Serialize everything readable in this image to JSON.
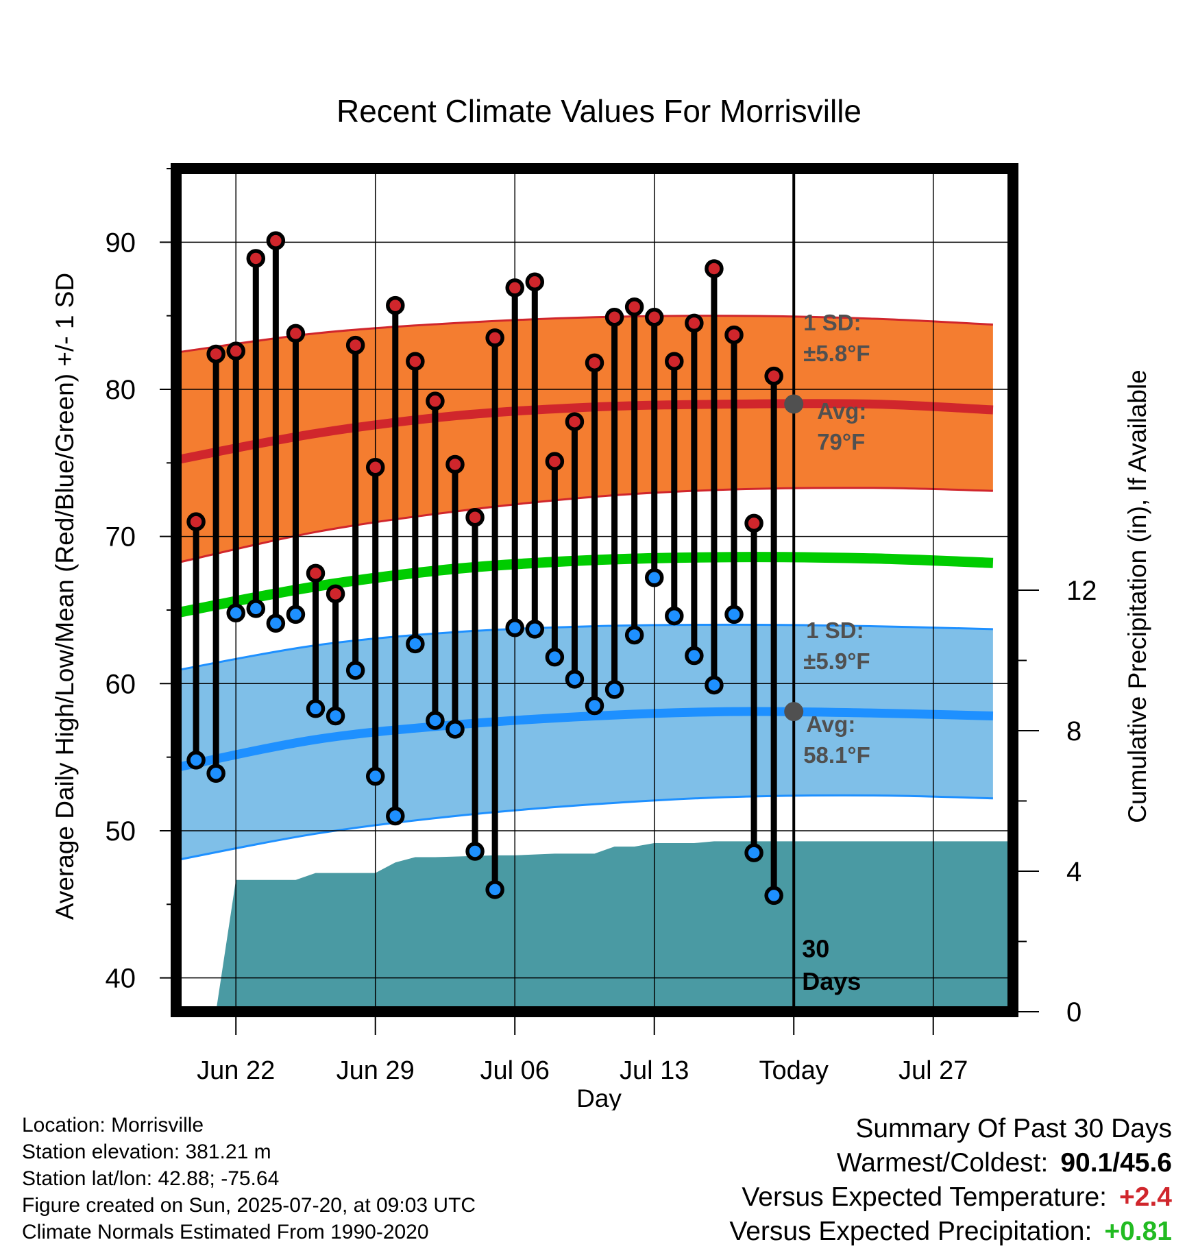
{
  "chart_data": {
    "type": "line",
    "title": "Recent Climate Values For Morrisville",
    "xlabel": "Day",
    "ylabel": "Average Daily High/Low/Mean (Red/Blue/Green) +/- 1 SD",
    "y2label": "Cumulative Precipitation (in), If Available",
    "ylim": [
      37.7,
      95
    ],
    "y2lim": [
      0,
      24
    ],
    "xlim": [
      "2025-06-19",
      "2025-07-31"
    ],
    "yticks": [
      40,
      50,
      60,
      70,
      80,
      90
    ],
    "y2ticks": [
      0,
      4,
      8,
      12
    ],
    "xticks": [
      {
        "date": "2025-06-22",
        "label": "Jun 22"
      },
      {
        "date": "2025-06-29",
        "label": "Jun 29"
      },
      {
        "date": "2025-07-06",
        "label": "Jul 06"
      },
      {
        "date": "2025-07-13",
        "label": "Jul 13"
      },
      {
        "date": "2025-07-20",
        "label": "Today"
      },
      {
        "date": "2025-07-27",
        "label": "Jul 27"
      }
    ],
    "grid": true,
    "today": "2025-07-20",
    "today_label": "30 Days",
    "normals": {
      "dates": [
        "2025-06-19",
        "2025-06-26",
        "2025-07-03",
        "2025-07-10",
        "2025-07-17",
        "2025-07-24",
        "2025-07-30"
      ],
      "high": [
        75.2,
        77.0,
        78.2,
        78.8,
        79.0,
        79.0,
        78.6
      ],
      "high_upper": [
        82.5,
        83.8,
        84.5,
        84.9,
        85.0,
        84.8,
        84.4
      ],
      "high_lower": [
        68.2,
        70.3,
        71.7,
        72.7,
        73.2,
        73.3,
        73.1
      ],
      "mean": [
        64.8,
        66.6,
        67.8,
        68.4,
        68.6,
        68.5,
        68.2
      ],
      "low": [
        54.3,
        56.2,
        57.2,
        57.8,
        58.1,
        58.0,
        57.8
      ],
      "low_upper": [
        60.9,
        62.6,
        63.5,
        63.9,
        64.0,
        63.9,
        63.7
      ],
      "low_lower": [
        48.0,
        49.8,
        51.0,
        51.8,
        52.3,
        52.4,
        52.2
      ]
    },
    "series": [
      {
        "name": "High",
        "dates": [
          "2025-06-20",
          "2025-06-21",
          "2025-06-22",
          "2025-06-23",
          "2025-06-24",
          "2025-06-25",
          "2025-06-26",
          "2025-06-27",
          "2025-06-28",
          "2025-06-29",
          "2025-06-30",
          "2025-07-01",
          "2025-07-02",
          "2025-07-03",
          "2025-07-04",
          "2025-07-05",
          "2025-07-06",
          "2025-07-07",
          "2025-07-08",
          "2025-07-09",
          "2025-07-10",
          "2025-07-11",
          "2025-07-12",
          "2025-07-13",
          "2025-07-14",
          "2025-07-15",
          "2025-07-16",
          "2025-07-17",
          "2025-07-18",
          "2025-07-19"
        ],
        "values": [
          71.0,
          82.4,
          82.6,
          88.9,
          90.1,
          83.8,
          67.5,
          66.1,
          83.0,
          74.7,
          85.7,
          81.9,
          79.2,
          74.9,
          71.3,
          83.5,
          86.9,
          87.3,
          75.1,
          77.8,
          81.8,
          84.9,
          85.6,
          84.9,
          81.9,
          84.5,
          88.2,
          83.7,
          70.9,
          80.9
        ]
      },
      {
        "name": "Low",
        "dates": [
          "2025-06-20",
          "2025-06-21",
          "2025-06-22",
          "2025-06-23",
          "2025-06-24",
          "2025-06-25",
          "2025-06-26",
          "2025-06-27",
          "2025-06-28",
          "2025-06-29",
          "2025-06-30",
          "2025-07-01",
          "2025-07-02",
          "2025-07-03",
          "2025-07-04",
          "2025-07-05",
          "2025-07-06",
          "2025-07-07",
          "2025-07-08",
          "2025-07-09",
          "2025-07-10",
          "2025-07-11",
          "2025-07-12",
          "2025-07-13",
          "2025-07-14",
          "2025-07-15",
          "2025-07-16",
          "2025-07-17",
          "2025-07-18",
          "2025-07-19"
        ],
        "values": [
          54.8,
          53.9,
          64.8,
          65.1,
          64.1,
          64.7,
          58.3,
          57.8,
          60.9,
          53.7,
          51.0,
          62.7,
          57.5,
          56.9,
          48.6,
          46.0,
          63.8,
          63.7,
          61.8,
          60.3,
          58.5,
          59.6,
          63.3,
          67.2,
          64.6,
          61.9,
          59.9,
          64.7,
          48.5,
          45.6
        ]
      },
      {
        "name": "Cumulative Precipitation",
        "dates": [
          "2025-06-20",
          "2025-06-21",
          "2025-06-22",
          "2025-06-25",
          "2025-06-26",
          "2025-06-29",
          "2025-06-30",
          "2025-07-01",
          "2025-07-02",
          "2025-07-05",
          "2025-07-06",
          "2025-07-08",
          "2025-07-09",
          "2025-07-10",
          "2025-07-11",
          "2025-07-12",
          "2025-07-13",
          "2025-07-15",
          "2025-07-16",
          "2025-07-20",
          "2025-07-31"
        ],
        "values": [
          0.0,
          0.0,
          3.75,
          3.75,
          3.95,
          3.95,
          4.25,
          4.4,
          4.4,
          4.45,
          4.45,
          4.5,
          4.5,
          4.5,
          4.7,
          4.7,
          4.8,
          4.8,
          4.85,
          4.85,
          4.85
        ]
      }
    ],
    "annotations": {
      "high_sd_title": "1 SD:",
      "high_sd": "±5.8°F",
      "high_avg_title": "Avg:",
      "high_avg": "79°F",
      "high_avg_value": 79.0,
      "low_sd_title": "1 SD:",
      "low_sd": "±5.9°F",
      "low_avg_title": "Avg:",
      "low_avg": "58.1°F",
      "low_avg_value": 58.1
    },
    "colors": {
      "high_band": "#f47d30",
      "high_line": "#d0262c",
      "mean_line": "#00cc00",
      "low_band": "#7fbfe8",
      "low_line": "#1e90ff",
      "precip": "#4a9aa3",
      "high_dot": "#d0262c",
      "low_dot": "#1e90ff",
      "annotation": "#505050"
    }
  },
  "footer": {
    "location": "Location: Morrisville",
    "elevation": "Station elevation: 381.21 m",
    "latlon": "Station lat/lon: 42.88; -75.64",
    "created": "Figure created on Sun, 2025-07-20, at 09:03 UTC",
    "normals": "Climate Normals Estimated From 1990-2020"
  },
  "summary": {
    "title": "Summary Of Past 30 Days",
    "warmest_label": "Warmest/Coldest:",
    "warmest_value": "90.1/45.6",
    "temp_label": "Versus Expected Temperature:",
    "temp_value": "+2.4",
    "temp_color": "#d0262c",
    "precip_label": "Versus Expected Precipitation:",
    "precip_value": "+0.81",
    "precip_color": "#22bb22"
  }
}
